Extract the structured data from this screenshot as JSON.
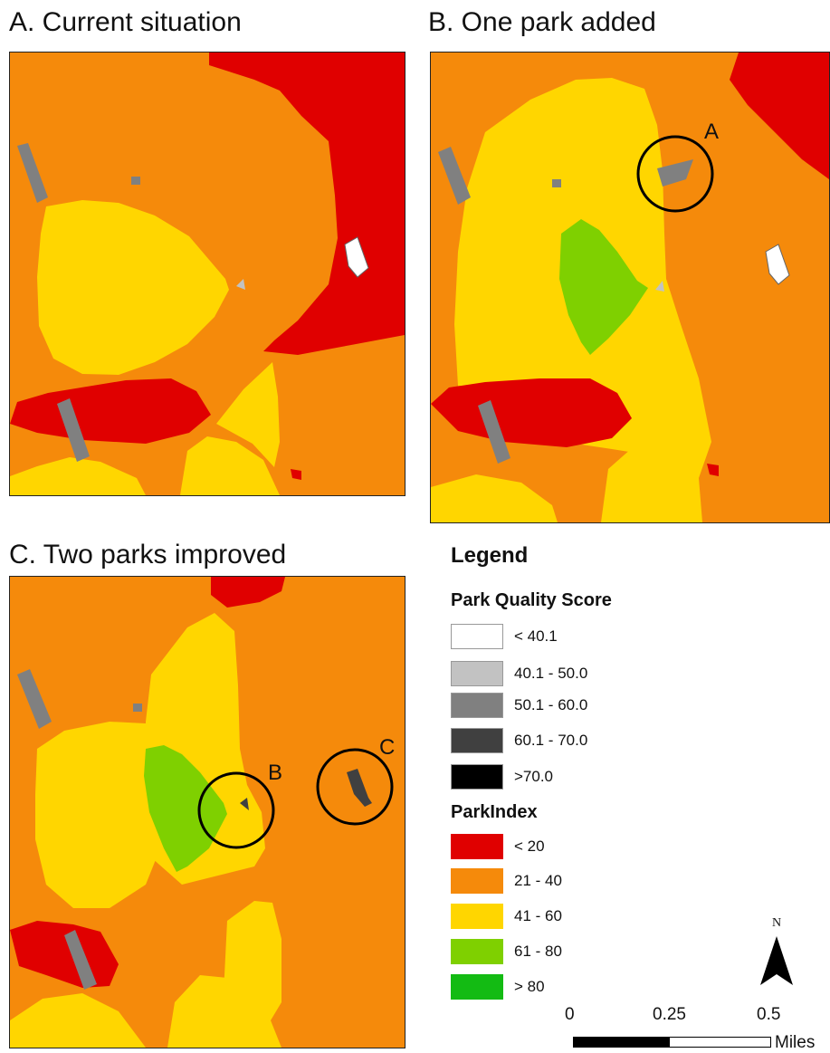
{
  "panels": {
    "a": {
      "title": "A. Current situation"
    },
    "b": {
      "title": "B. One park added",
      "callout": "A"
    },
    "c": {
      "title": "C. Two parks improved",
      "callouts": [
        "B",
        "C"
      ]
    }
  },
  "legend": {
    "title": "Legend",
    "park_quality": {
      "title": "Park Quality Score",
      "items": [
        {
          "label": "< 40.1",
          "color": "#ffffff"
        },
        {
          "label": "40.1 - 50.0",
          "color": "#c2c2c2"
        },
        {
          "label": "50.1 - 60.0",
          "color": "#808080"
        },
        {
          "label": "60.1 - 70.0",
          "color": "#404040"
        },
        {
          "label": ">70.0",
          "color": "#000000"
        }
      ]
    },
    "park_index": {
      "title": "ParkIndex",
      "items": [
        {
          "label": "< 20",
          "color": "#e00000"
        },
        {
          "label": "21 - 40",
          "color": "#f58a0b"
        },
        {
          "label": "41 - 60",
          "color": "#ffd600"
        },
        {
          "label": "61 - 80",
          "color": "#7fd000"
        },
        {
          "label": "> 80",
          "color": "#13bb13"
        }
      ]
    }
  },
  "north_arrow": {
    "label": "N"
  },
  "scale_bar": {
    "ticks": [
      "0",
      "0.25",
      "0.5"
    ],
    "unit": "Miles"
  }
}
